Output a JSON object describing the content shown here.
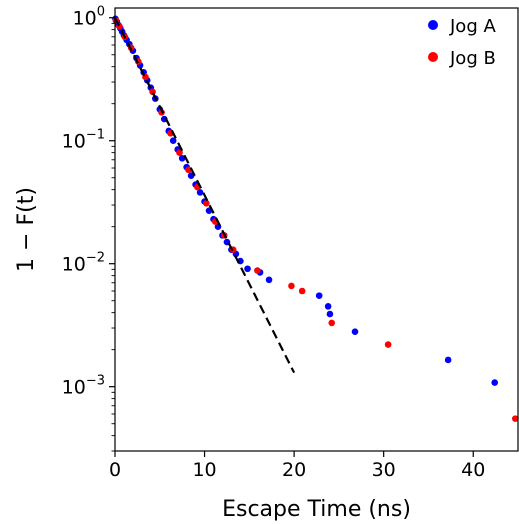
{
  "chart_data": {
    "type": "scatter",
    "title": "",
    "xlabel": "Escape Time (ns)",
    "ylabel": "1 − F(t)",
    "xlim": [
      0,
      45
    ],
    "ylim": [
      0.0003,
      1.2
    ],
    "yscale": "log",
    "grid": false,
    "legend_position": "top-right",
    "x_ticks": [
      "0",
      "10",
      "20",
      "30",
      "40"
    ],
    "y_tick_labels": [
      {
        "base": "10",
        "exp": "0",
        "value": 1
      },
      {
        "base": "10",
        "exp": "−1",
        "value": 0.1
      },
      {
        "base": "10",
        "exp": "−2",
        "value": 0.01
      },
      {
        "base": "10",
        "exp": "−3",
        "value": 0.001
      }
    ],
    "series": [
      {
        "name": "Jog A",
        "color": "#0000ff",
        "points": [
          [
            0.05,
            0.98
          ],
          [
            0.2,
            0.93
          ],
          [
            0.4,
            0.87
          ],
          [
            0.6,
            0.82
          ],
          [
            0.8,
            0.77
          ],
          [
            1.0,
            0.72
          ],
          [
            1.3,
            0.66
          ],
          [
            1.6,
            0.61
          ],
          [
            2.0,
            0.54
          ],
          [
            2.4,
            0.47
          ],
          [
            2.8,
            0.41
          ],
          [
            3.2,
            0.36
          ],
          [
            3.6,
            0.31
          ],
          [
            4.0,
            0.27
          ],
          [
            4.5,
            0.22
          ],
          [
            5.0,
            0.18
          ],
          [
            5.5,
            0.15
          ],
          [
            6.0,
            0.12
          ],
          [
            6.5,
            0.1
          ],
          [
            7.0,
            0.085
          ],
          [
            7.5,
            0.072
          ],
          [
            8.0,
            0.061
          ],
          [
            8.5,
            0.052
          ],
          [
            9.0,
            0.044
          ],
          [
            9.5,
            0.038
          ],
          [
            10.0,
            0.032
          ],
          [
            10.5,
            0.027
          ],
          [
            11.0,
            0.023
          ],
          [
            11.5,
            0.02
          ],
          [
            12.0,
            0.017
          ],
          [
            12.5,
            0.015
          ],
          [
            13.0,
            0.013
          ],
          [
            13.5,
            0.012
          ],
          [
            14.0,
            0.0105
          ],
          [
            14.8,
            0.0091
          ],
          [
            16.2,
            0.0085
          ],
          [
            17.2,
            0.0074
          ],
          [
            22.8,
            0.0055
          ],
          [
            23.8,
            0.0045
          ],
          [
            24.0,
            0.0039
          ],
          [
            26.8,
            0.0028
          ],
          [
            37.2,
            0.00165
          ],
          [
            42.4,
            0.00108
          ]
        ]
      },
      {
        "name": "Jog B",
        "color": "#ff0000",
        "points": [
          [
            0.1,
            0.95
          ],
          [
            0.5,
            0.85
          ],
          [
            1.1,
            0.7
          ],
          [
            1.8,
            0.57
          ],
          [
            2.6,
            0.44
          ],
          [
            3.4,
            0.33
          ],
          [
            4.2,
            0.25
          ],
          [
            5.2,
            0.17
          ],
          [
            6.2,
            0.115
          ],
          [
            7.2,
            0.08
          ],
          [
            8.2,
            0.058
          ],
          [
            9.2,
            0.042
          ],
          [
            10.2,
            0.031
          ],
          [
            11.2,
            0.022
          ],
          [
            12.2,
            0.017
          ],
          [
            13.2,
            0.013
          ],
          [
            15.9,
            0.0088
          ],
          [
            19.7,
            0.0066
          ],
          [
            20.9,
            0.006
          ],
          [
            24.2,
            0.0033
          ],
          [
            30.5,
            0.0022
          ],
          [
            44.7,
            0.00055
          ]
        ]
      }
    ],
    "fit_line": {
      "style": "dashed",
      "color": "#000000",
      "points": [
        [
          0,
          1.0
        ],
        [
          20,
          0.0013
        ]
      ]
    }
  }
}
